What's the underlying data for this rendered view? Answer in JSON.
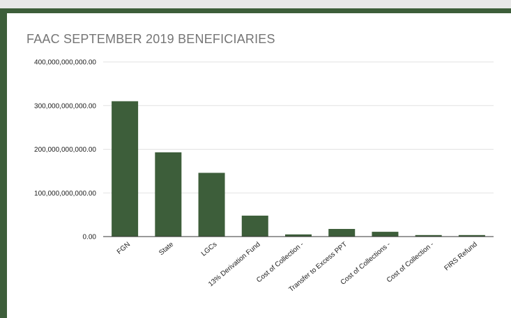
{
  "chart_data": {
    "type": "bar",
    "title": "FAAC SEPTEMBER 2019 BENEFICIARIES",
    "xlabel": "",
    "ylabel": "",
    "ylim": [
      0,
      400000000000
    ],
    "y_ticks": [
      {
        "value": 0,
        "label": "0.00"
      },
      {
        "value": 100000000000,
        "label": "100,000,000,000.00"
      },
      {
        "value": 200000000000,
        "label": "200,000,000,000.00"
      },
      {
        "value": 300000000000,
        "label": "300,000,000,000.00"
      },
      {
        "value": 400000000000,
        "label": "400,000,000,000.00"
      }
    ],
    "categories": [
      "FGN",
      "State",
      "LGCs",
      "13% Derivation Fund",
      "Cost of Collection -",
      "Transfer to Excess PPT",
      "Cost of Collections -",
      "Cost of Collection -",
      "FIRS Refund"
    ],
    "values": [
      310000000000,
      193000000000,
      146000000000,
      48000000000,
      5000000000,
      17500000000,
      11000000000,
      3500000000,
      3500000000
    ],
    "grid": true,
    "legend": "none",
    "bar_color": "#3d5e3a"
  }
}
